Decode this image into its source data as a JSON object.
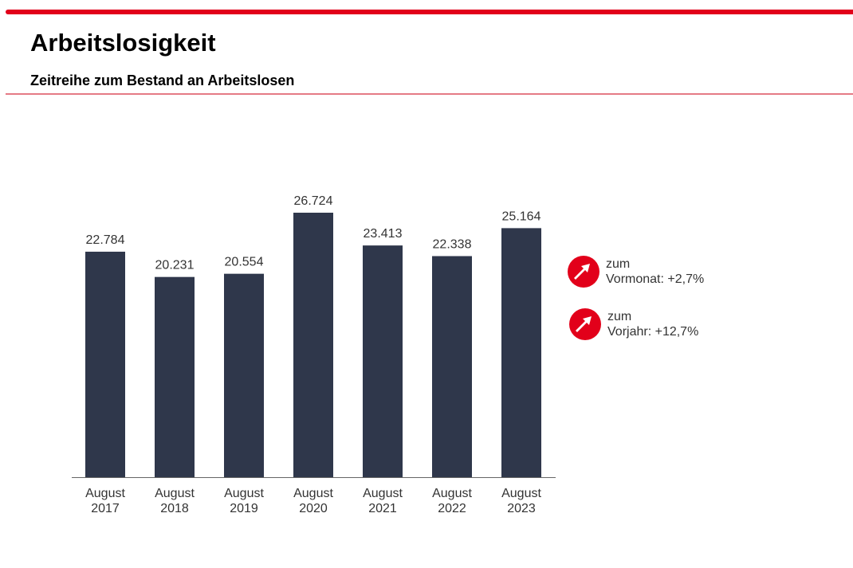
{
  "header": {
    "title": "Arbeitslosigkeit",
    "subtitle": "Zeitreihe zum Bestand an Arbeitslosen"
  },
  "colors": {
    "accent": "#e2001a",
    "bar": "#2f374b"
  },
  "chart_data": {
    "type": "bar",
    "categories": [
      [
        "August",
        "2017"
      ],
      [
        "August",
        "2018"
      ],
      [
        "August",
        "2019"
      ],
      [
        "August",
        "2020"
      ],
      [
        "August",
        "2021"
      ],
      [
        "August",
        "2022"
      ],
      [
        "August",
        "2023"
      ]
    ],
    "values": [
      22784,
      20231,
      20554,
      26724,
      23413,
      22338,
      25164
    ],
    "data_labels": [
      "22.784",
      "20.231",
      "20.554",
      "26.724",
      "23.413",
      "22.338",
      "25.164"
    ],
    "ylim": [
      0,
      26724
    ],
    "grid": false,
    "legend": "none"
  },
  "indicators": [
    {
      "icon": "arrow-up-right-icon",
      "line1": "zum",
      "label": "Vormonat:",
      "value": "+2,7%"
    },
    {
      "icon": "arrow-up-right-icon",
      "line1": "zum",
      "label": "Vorjahr:",
      "value": "+12,7%"
    }
  ]
}
